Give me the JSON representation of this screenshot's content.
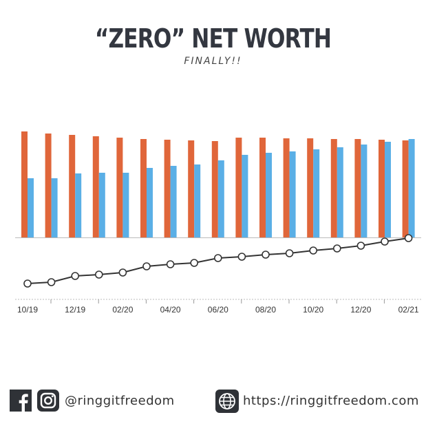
{
  "title": "“ZERO” NET WORTH",
  "subtitle": "FINALLY!!",
  "footer": {
    "handle": "@ringgitfreedom",
    "url": "https://ringgitfreedom.com"
  },
  "icons": {
    "facebook": "facebook-icon",
    "instagram": "instagram-icon",
    "globe": "globe-icon"
  },
  "colors": {
    "orange": "#e0663a",
    "blue": "#5aafe6",
    "line": "#333333"
  },
  "chart_data": {
    "type": "bar",
    "x_tick_labels": [
      "10/19",
      "12/19",
      "02/20",
      "04/20",
      "06/20",
      "08/20",
      "10/20",
      "12/20",
      "02/21"
    ],
    "categories": [
      "10/19",
      "11/19",
      "12/19",
      "01/20",
      "02/20",
      "03/20",
      "04/20",
      "05/20",
      "06/20",
      "07/20",
      "08/20",
      "09/20",
      "10/20",
      "11/20",
      "12/20",
      "01/21",
      "02/21"
    ],
    "series": [
      {
        "kind": "bar",
        "color": "#e0663a",
        "values": [
          154,
          151,
          149,
          147,
          145,
          143,
          142,
          141,
          140,
          145,
          145,
          144,
          144,
          143,
          143,
          142,
          141
        ]
      },
      {
        "kind": "bar",
        "color": "#5aafe6",
        "values": [
          86,
          86,
          93,
          94,
          94,
          101,
          104,
          106,
          112,
          120,
          123,
          125,
          128,
          131,
          135,
          139,
          143
        ]
      },
      {
        "kind": "line",
        "color": "#333333",
        "values": [
          -67,
          -65,
          -56,
          -54,
          -51,
          -42,
          -39,
          -37,
          -30,
          -28,
          -25,
          -23,
          -19,
          -16,
          -12,
          -6,
          -1
        ]
      }
    ],
    "ylim": [
      -80,
      160
    ],
    "grid": false,
    "legend": "none"
  }
}
